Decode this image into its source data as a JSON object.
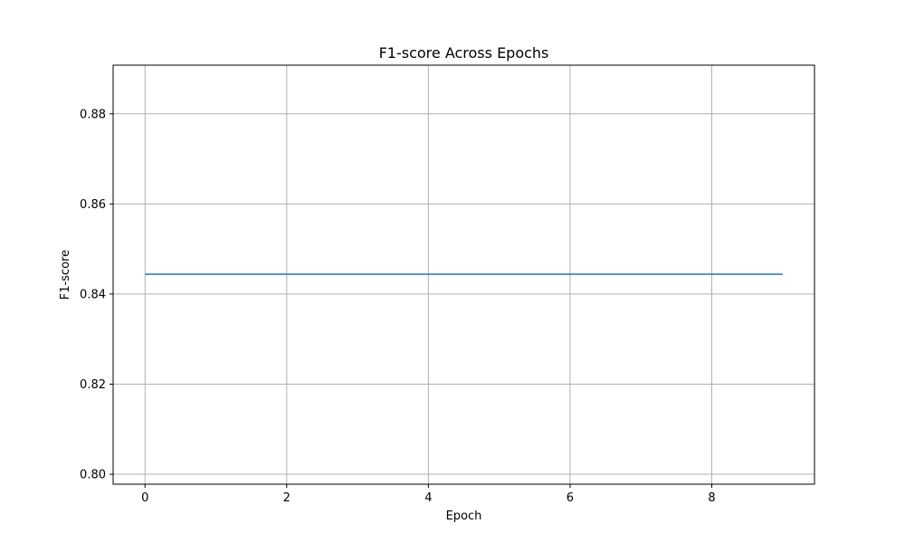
{
  "chart_data": {
    "type": "line",
    "title": "F1-score Across Epochs",
    "xlabel": "Epoch",
    "ylabel": "F1-score",
    "x": [
      0,
      1,
      2,
      3,
      4,
      5,
      6,
      7,
      8,
      9
    ],
    "series": [
      {
        "values": [
          0.8444,
          0.8444,
          0.8444,
          0.8444,
          0.8444,
          0.8444,
          0.8444,
          0.8444,
          0.8444,
          0.8444
        ],
        "color": "#1f77b4"
      }
    ],
    "xlim": [
      -0.45,
      9.45
    ],
    "ylim": [
      0.7978,
      0.8908
    ],
    "xticks": [
      0,
      2,
      4,
      6,
      8
    ],
    "xtick_labels": [
      "0",
      "2",
      "4",
      "6",
      "8"
    ],
    "yticks": [
      0.8,
      0.82,
      0.84,
      0.86,
      0.88
    ],
    "ytick_labels": [
      "0.80",
      "0.82",
      "0.84",
      "0.86",
      "0.88"
    ],
    "grid": true,
    "grid_color": "#b0b0b0",
    "legend": "none"
  }
}
